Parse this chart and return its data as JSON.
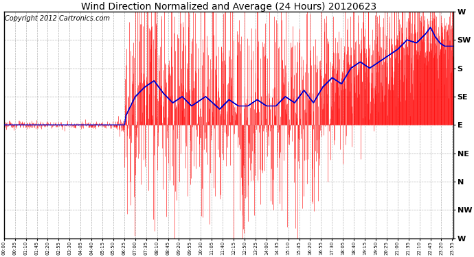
{
  "title": "Wind Direction Normalized and Average (24 Hours) 20120623",
  "copyright": "Copyright 2012 Cartronics.com",
  "ytick_labels": [
    "W",
    "SW",
    "S",
    "SE",
    "E",
    "NE",
    "N",
    "NW",
    "W"
  ],
  "ytick_values": [
    360,
    315,
    270,
    225,
    180,
    135,
    90,
    45,
    0
  ],
  "ylim": [
    0,
    360
  ],
  "baseline": 180,
  "line_color": "#0000cc",
  "bar_color": "#ff0000",
  "bg_color": "#ffffff",
  "plot_bg": "#ffffff",
  "grid_color": "#aaaaaa",
  "title_fontsize": 10,
  "copyright_fontsize": 7,
  "figwidth": 6.9,
  "figheight": 3.75,
  "dpi": 100,
  "n_points": 1440,
  "minutes_per_step": 1,
  "tick_interval_min": 35,
  "xtick_fontsize": 5.0,
  "ytick_fontsize": 8
}
